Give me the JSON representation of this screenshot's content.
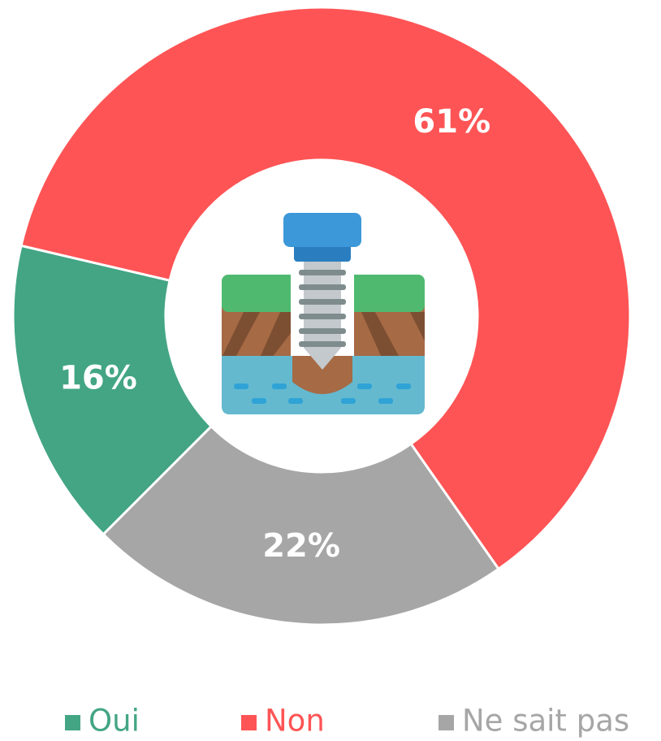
{
  "chart_data": {
    "type": "donut",
    "series": [
      {
        "name": "Oui",
        "color": "#43a584",
        "values": [
          16
        ],
        "value_labels": [
          "16%"
        ]
      },
      {
        "name": "Non",
        "color": "#fe5455",
        "values": [
          61
        ],
        "value_labels": [
          "61%"
        ]
      },
      {
        "name": "Ne sait pas",
        "color": "#a6a6a6",
        "values": [
          22
        ],
        "value_labels": [
          "22%"
        ]
      }
    ],
    "legend": "bottom"
  }
}
